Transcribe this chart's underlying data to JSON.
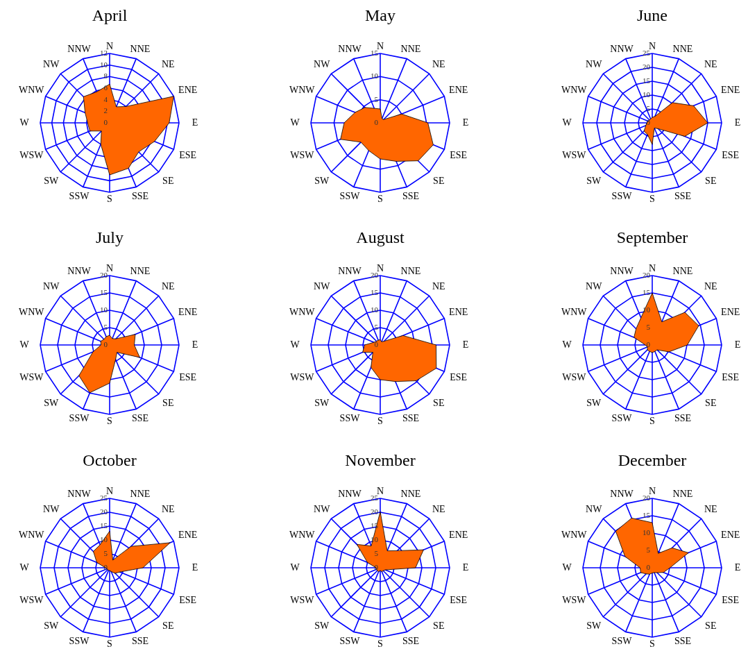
{
  "chart_data": [
    {
      "type": "radar",
      "title": "April",
      "categories": [
        "N",
        "NNE",
        "NE",
        "ENE",
        "E",
        "ESE",
        "SE",
        "SSE",
        "S",
        "SSW",
        "SW",
        "WSW",
        "W",
        "WNW",
        "NW",
        "NNW"
      ],
      "ylim": [
        0,
        12
      ],
      "yticks": [
        0,
        2,
        4,
        6,
        8,
        10,
        12
      ],
      "grid": true,
      "series": [
        {
          "color": "#ff6600",
          "values": [
            6.7,
            3,
            4,
            12,
            10.3,
            8.4,
            7.1,
            8.5,
            9,
            4,
            2,
            3.7,
            3.8,
            4.6,
            6.4,
            5.8
          ]
        }
      ]
    },
    {
      "type": "radar",
      "title": "May",
      "categories": [
        "N",
        "NNE",
        "NE",
        "ENE",
        "E",
        "ESE",
        "SE",
        "SSE",
        "S",
        "SSW",
        "SW",
        "WSW",
        "W",
        "WNW",
        "NW",
        "NNW"
      ],
      "ylim": [
        0,
        15
      ],
      "yticks": [
        0,
        5,
        10,
        15
      ],
      "grid": true,
      "series": [
        {
          "color": "#ff6600",
          "values": [
            3,
            1,
            1,
            5,
            10.3,
            12.4,
            11.6,
            9,
            7.8,
            6.5,
            5.9,
            9.3,
            7.8,
            5.9,
            4.7,
            3.4
          ]
        }
      ]
    },
    {
      "type": "radar",
      "title": "June",
      "categories": [
        "N",
        "NNE",
        "NE",
        "ENE",
        "E",
        "ESE",
        "SE",
        "SSE",
        "S",
        "SSW",
        "SW",
        "WSW",
        "W",
        "WNW",
        "NW",
        "NNW"
      ],
      "ylim": [
        0,
        25
      ],
      "yticks": [
        0,
        5,
        10,
        15,
        20,
        25
      ],
      "grid": true,
      "series": [
        {
          "color": "#ff6600",
          "values": [
            2,
            2.5,
            10.3,
            16.1,
            20,
            12.7,
            3,
            2,
            7.8,
            4.5,
            4.2,
            2.5,
            2,
            1.5,
            1.5,
            1.5
          ]
        }
      ]
    },
    {
      "type": "radar",
      "title": "July",
      "categories": [
        "N",
        "NNE",
        "NE",
        "ENE",
        "E",
        "ESE",
        "SE",
        "SSE",
        "S",
        "SSW",
        "SW",
        "WSW",
        "W",
        "WNW",
        "NW",
        "NNW"
      ],
      "ylim": [
        0,
        20
      ],
      "yticks": [
        0,
        5,
        10,
        15,
        20
      ],
      "grid": true,
      "series": [
        {
          "color": "#ff6600",
          "values": [
            2.8,
            2,
            2.5,
            8,
            7.1,
            9.4,
            3,
            4.5,
            11,
            14.9,
            12.5,
            5.2,
            2.5,
            2.8,
            2.3,
            2.6
          ]
        }
      ]
    },
    {
      "type": "radar",
      "title": "August",
      "categories": [
        "N",
        "NNE",
        "NE",
        "ENE",
        "E",
        "ESE",
        "SE",
        "SSE",
        "S",
        "SSW",
        "SW",
        "WSW",
        "W",
        "WNW",
        "NW",
        "NNW"
      ],
      "ylim": [
        0,
        20
      ],
      "yticks": [
        0,
        5,
        10,
        15,
        20
      ],
      "grid": true,
      "series": [
        {
          "color": "#ff6600",
          "values": [
            1.5,
            1,
            1.5,
            7.1,
            16.1,
            17.5,
            14.6,
            11.4,
            10,
            7,
            3,
            5.5,
            4.5,
            2,
            1.5,
            1.5
          ]
        }
      ]
    },
    {
      "type": "radar",
      "title": "September",
      "categories": [
        "N",
        "NNE",
        "NE",
        "ENE",
        "E",
        "ESE",
        "SE",
        "SSE",
        "S",
        "SSW",
        "SW",
        "WSW",
        "W",
        "WNW",
        "NW",
        "NNW"
      ],
      "ylim": [
        0,
        20
      ],
      "yticks": [
        0,
        5,
        10,
        15,
        20
      ],
      "grid": true,
      "series": [
        {
          "color": "#ff6600",
          "values": [
            15,
            7.2,
            13.3,
            14.5,
            10.1,
            5.2,
            2,
            2,
            2.2,
            2,
            2,
            1.5,
            2,
            5.7,
            6.6,
            8.5
          ]
        }
      ]
    },
    {
      "type": "radar",
      "title": "October",
      "categories": [
        "N",
        "NNE",
        "NE",
        "ENE",
        "E",
        "ESE",
        "SE",
        "SSE",
        "S",
        "SSW",
        "SW",
        "WSW",
        "W",
        "WNW",
        "NW",
        "NNW"
      ],
      "ylim": [
        0,
        25
      ],
      "yticks": [
        0,
        5,
        10,
        15,
        20,
        25
      ],
      "grid": true,
      "series": [
        {
          "color": "#ff6600",
          "values": [
            13.2,
            3,
            10.9,
            23.6,
            12,
            4,
            2.8,
            1.5,
            1,
            1,
            1,
            1,
            1.5,
            5,
            8.3,
            9
          ]
        }
      ]
    },
    {
      "type": "radar",
      "title": "November",
      "categories": [
        "N",
        "NNE",
        "NE",
        "ENE",
        "E",
        "ESE",
        "SE",
        "SSE",
        "S",
        "SSW",
        "SW",
        "WSW",
        "W",
        "WNW",
        "NW",
        "NNW"
      ],
      "ylim": [
        0,
        25
      ],
      "yticks": [
        0,
        5,
        10,
        15,
        20,
        25
      ],
      "grid": true,
      "series": [
        {
          "color": "#ff6600",
          "values": [
            20.2,
            6.6,
            8.7,
            16.9,
            12.7,
            2,
            1.5,
            1.5,
            1,
            1.5,
            1.5,
            1.5,
            1.5,
            5,
            11.9,
            8.5
          ]
        }
      ]
    },
    {
      "type": "radar",
      "title": "December",
      "categories": [
        "N",
        "NNE",
        "NE",
        "ENE",
        "E",
        "ESE",
        "SE",
        "SSE",
        "S",
        "SSW",
        "SW",
        "WSW",
        "W",
        "WNW",
        "NW",
        "NNW"
      ],
      "ylim": [
        0,
        20
      ],
      "yticks": [
        0,
        5,
        10,
        15,
        20
      ],
      "grid": true,
      "series": [
        {
          "color": "#ff6600",
          "values": [
            13,
            4.5,
            8.1,
            11.3,
            5.1,
            3.5,
            2,
            1.5,
            1.5,
            2,
            2.5,
            3.6,
            3.5,
            8.5,
            14.9,
            15.5
          ]
        }
      ]
    }
  ]
}
